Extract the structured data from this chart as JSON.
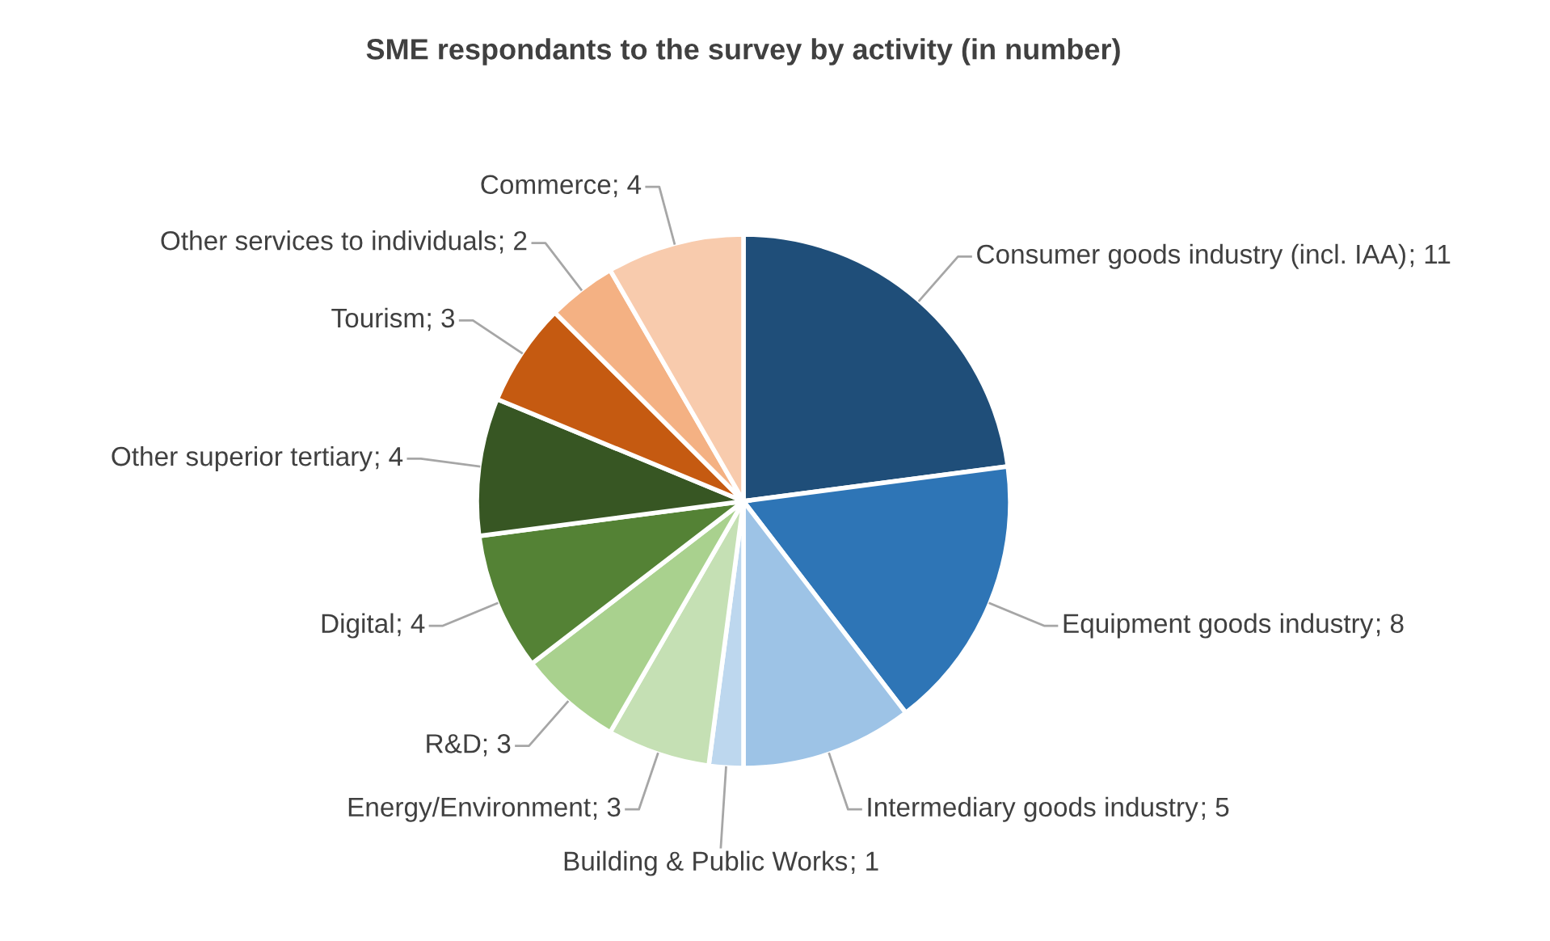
{
  "chart_data": {
    "type": "pie",
    "title": "SME respondants to the survey by activity (in number)",
    "categories": [
      "Consumer goods industry (incl. IAA)",
      "Equipment goods industry",
      "Intermediary goods industry",
      "Building & Public Works",
      "Energy/Environment",
      "R&D",
      "Digital",
      "Other superior tertiary",
      "Tourism",
      "Other services to individuals",
      "Commerce"
    ],
    "values": [
      11,
      8,
      5,
      1,
      3,
      3,
      4,
      4,
      3,
      2,
      4
    ],
    "colors": [
      "#1f4e79",
      "#2e75b6",
      "#9dc3e6",
      "#bdd7ee",
      "#c5e0b4",
      "#a9d18e",
      "#548235",
      "#375623",
      "#c55a11",
      "#f4b183",
      "#f8cbad"
    ],
    "value_labels": [
      "; 11",
      "; 8",
      "; 5",
      "; 1",
      "; 3",
      "; 3",
      "; 4",
      "; 4",
      "; 3",
      "; 2",
      "; 4"
    ],
    "legend": false
  }
}
